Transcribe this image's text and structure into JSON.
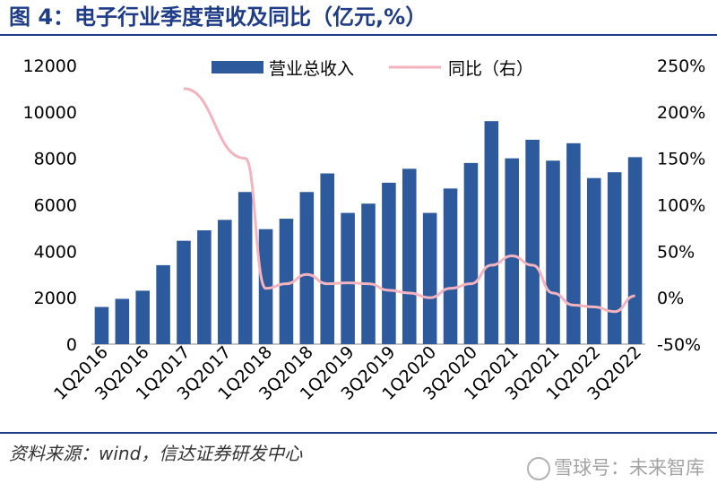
{
  "title": "图 4：电子行业季度营收及同比（亿元,%）",
  "source": "资料来源：wind，信达证券研发中心",
  "watermark": "雪球号：未来智库",
  "chart_data": {
    "type": "bar",
    "categories": [
      "1Q2016",
      "2Q2016",
      "3Q2016",
      "4Q2016",
      "1Q2017",
      "2Q2017",
      "3Q2017",
      "4Q2017",
      "1Q2018",
      "2Q2018",
      "3Q2018",
      "4Q2018",
      "1Q2019",
      "2Q2019",
      "3Q2019",
      "4Q2019",
      "1Q2020",
      "2Q2020",
      "3Q2020",
      "4Q2020",
      "1Q2021",
      "2Q2021",
      "3Q2021",
      "4Q2021",
      "1Q2022",
      "2Q2022",
      "3Q2022"
    ],
    "tick_labels": [
      "1Q2016",
      "3Q2016",
      "1Q2017",
      "3Q2017",
      "1Q2018",
      "3Q2018",
      "1Q2019",
      "3Q2019",
      "1Q2020",
      "3Q2020",
      "1Q2021",
      "3Q2021",
      "1Q2022",
      "3Q2022"
    ],
    "series": [
      {
        "name": "营业总收入",
        "type": "bar",
        "axis": "left",
        "values": [
          1600,
          1950,
          2300,
          3400,
          4450,
          4900,
          5350,
          6550,
          4950,
          5400,
          6550,
          7350,
          5650,
          6050,
          6950,
          7550,
          5650,
          6700,
          7800,
          9600,
          8000,
          8800,
          7900,
          8650,
          7150,
          7400,
          8050
        ]
      },
      {
        "name": "同比（右）",
        "type": "line",
        "axis": "right",
        "values": [
          null,
          null,
          null,
          null,
          225,
          null,
          null,
          150,
          10,
          15,
          25,
          15,
          16,
          15,
          8,
          5,
          0,
          10,
          15,
          35,
          45,
          35,
          5,
          -8,
          -10,
          -15,
          2
        ]
      }
    ],
    "yleft": {
      "ticks": [
        0,
        2000,
        4000,
        6000,
        8000,
        10000,
        12000
      ],
      "ylim": [
        0,
        12000
      ]
    },
    "yright": {
      "ticks": [
        "-50%",
        "0%",
        "50%",
        "100%",
        "150%",
        "200%",
        "250%"
      ],
      "ylim": [
        -50,
        250
      ]
    },
    "colors": {
      "bar": "#2c5a9c",
      "line": "#f4b3be"
    },
    "legend_position": "top"
  }
}
